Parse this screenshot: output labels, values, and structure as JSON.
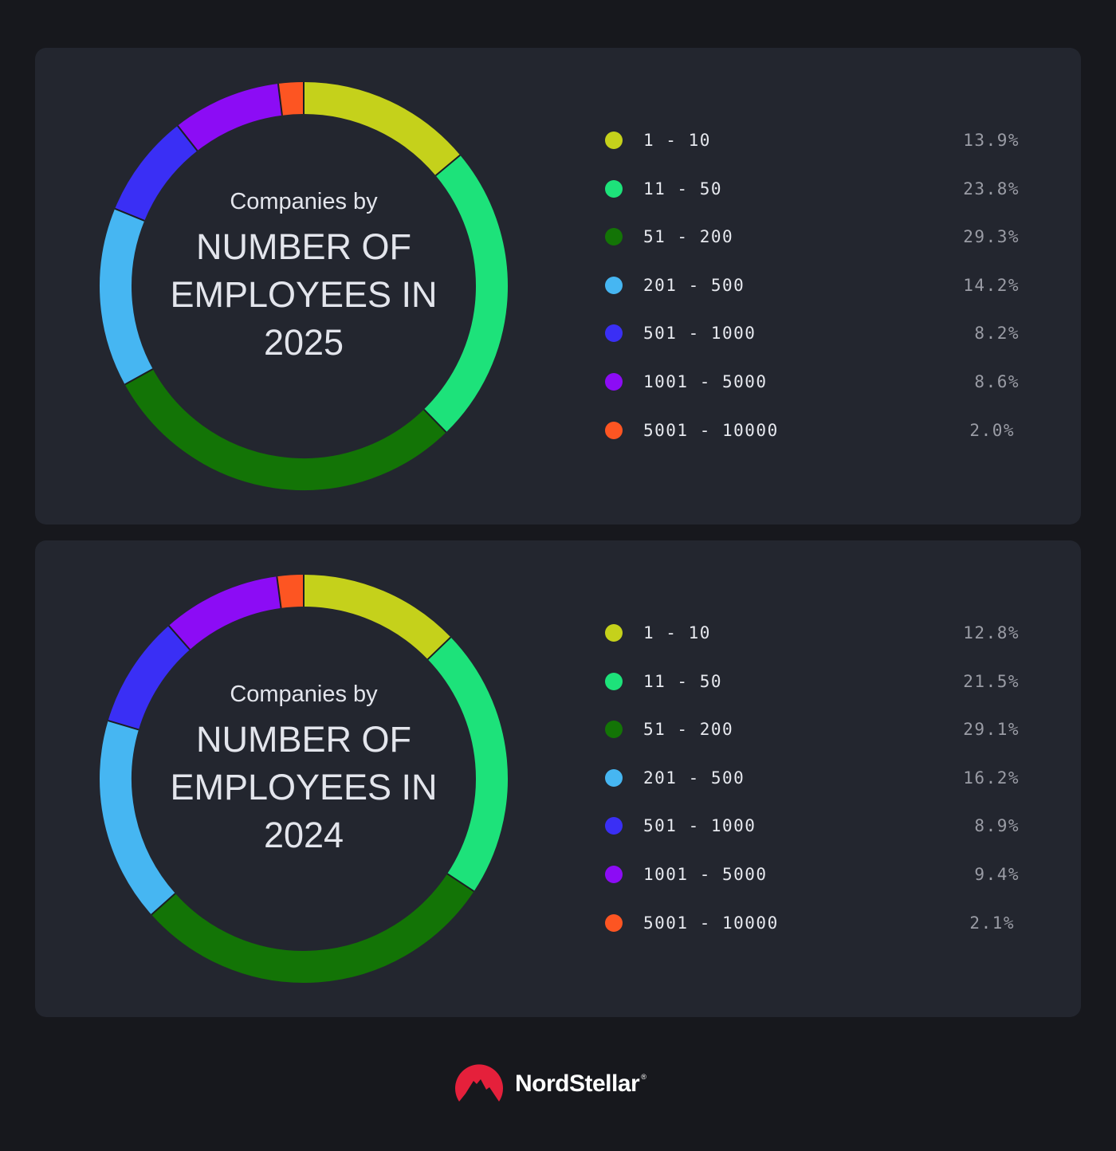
{
  "cards": [
    {
      "subtitle": "Companies by",
      "title_lines": [
        "NUMBER OF",
        "EMPLOYEES IN",
        "2025"
      ],
      "legend": [
        {
          "label": "1 - 10",
          "value": "13.9%",
          "color": "#c5d11b"
        },
        {
          "label": "11 - 50",
          "value": "23.8%",
          "color": "#1de27a"
        },
        {
          "label": "51 - 200",
          "value": "29.3%",
          "color": "#137406"
        },
        {
          "label": "201 - 500",
          "value": "14.2%",
          "color": "#46b6f2"
        },
        {
          "label": "501 - 1000",
          "value": "8.2%",
          "color": "#3a2ff5"
        },
        {
          "label": "1001 - 5000",
          "value": "8.6%",
          "color": "#8c0cf5"
        },
        {
          "label": "5001 - 10000",
          "value": "2.0%",
          "color": "#fd5522"
        }
      ]
    },
    {
      "subtitle": "Companies by",
      "title_lines": [
        "NUMBER OF",
        "EMPLOYEES IN",
        "2024"
      ],
      "legend": [
        {
          "label": "1 - 10",
          "value": "12.8%",
          "color": "#c5d11b"
        },
        {
          "label": "11 - 50",
          "value": "21.5%",
          "color": "#1de27a"
        },
        {
          "label": "51 - 200",
          "value": "29.1%",
          "color": "#137406"
        },
        {
          "label": "201 - 500",
          "value": "16.2%",
          "color": "#46b6f2"
        },
        {
          "label": "501 - 1000",
          "value": "8.9%",
          "color": "#3a2ff5"
        },
        {
          "label": "1001 - 5000",
          "value": "9.4%",
          "color": "#8c0cf5"
        },
        {
          "label": "5001 - 10000",
          "value": "2.1%",
          "color": "#fd5522"
        }
      ]
    }
  ],
  "brand": {
    "name": "NordStellar",
    "mark": "®"
  },
  "chart_data": [
    {
      "type": "pie",
      "title": "Companies by NUMBER OF EMPLOYEES IN 2025",
      "categories": [
        "1 - 10",
        "11 - 50",
        "51 - 200",
        "201 - 500",
        "501 - 1000",
        "1001 - 5000",
        "5001 - 10000"
      ],
      "values": [
        13.9,
        23.8,
        29.3,
        14.2,
        8.2,
        8.6,
        2.0
      ],
      "unit": "%",
      "colors": [
        "#c5d11b",
        "#1de27a",
        "#137406",
        "#46b6f2",
        "#3a2ff5",
        "#8c0cf5",
        "#fd5522"
      ],
      "donut": true,
      "legend_position": "right"
    },
    {
      "type": "pie",
      "title": "Companies by NUMBER OF EMPLOYEES IN 2024",
      "categories": [
        "1 - 10",
        "11 - 50",
        "51 - 200",
        "201 - 500",
        "501 - 1000",
        "1001 - 5000",
        "5001 - 10000"
      ],
      "values": [
        12.8,
        21.5,
        29.1,
        16.2,
        8.9,
        9.4,
        2.1
      ],
      "unit": "%",
      "colors": [
        "#c5d11b",
        "#1de27a",
        "#137406",
        "#46b6f2",
        "#3a2ff5",
        "#8c0cf5",
        "#fd5522"
      ],
      "donut": true,
      "legend_position": "right"
    }
  ]
}
